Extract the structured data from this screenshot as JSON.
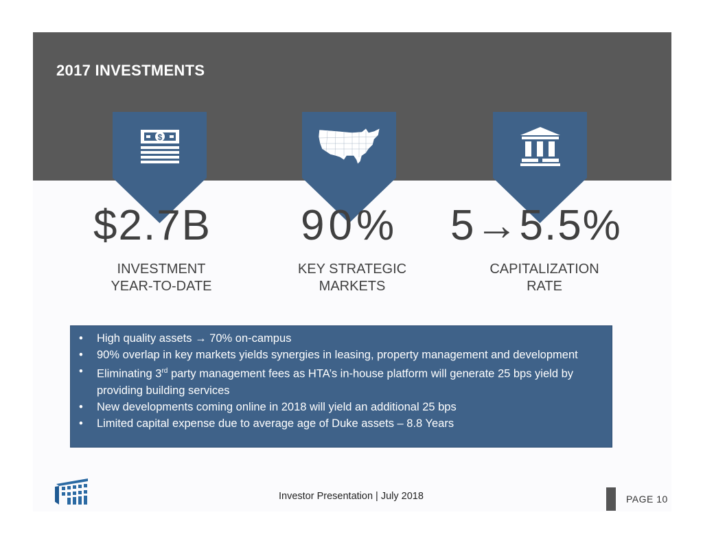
{
  "slide": {
    "title": "2017 INVESTMENTS"
  },
  "stats": [
    {
      "value": "$2.7B",
      "label_line1": "INVESTMENT",
      "label_line2": "YEAR-TO-DATE",
      "icon": "money-stack-icon"
    },
    {
      "value": "90%",
      "label_line1": "KEY STRATEGIC",
      "label_line2": "MARKETS",
      "icon": "us-map-icon"
    },
    {
      "value_start": "5",
      "value_arrow": "→",
      "value_end": "5.5%",
      "label_line1": "CAPITALIZATION",
      "label_line2": "RATE",
      "icon": "bank-building-icon"
    }
  ],
  "bullets": {
    "item1": "High quality assets → 70% on-campus",
    "item2": "90% overlap in key markets yields synergies in leasing, property management and development",
    "item3_pre": "Eliminating 3",
    "item3_sup": "rd",
    "item3_post": " party management fees as HTA’s in-house platform will generate 25 bps yield by providing building services",
    "item4": "New developments coming online in 2018 will yield an additional 25 bps",
    "item5": "Limited capital expense due to average age of Duke assets – 8.8 Years"
  },
  "footer": {
    "presentation": "Investor Presentation | July 2018",
    "page": "PAGE 10"
  },
  "colors": {
    "header_band": "#595959",
    "badge": "#3f6289",
    "bullet_box": "#3f6289",
    "text_dark": "#404040"
  }
}
